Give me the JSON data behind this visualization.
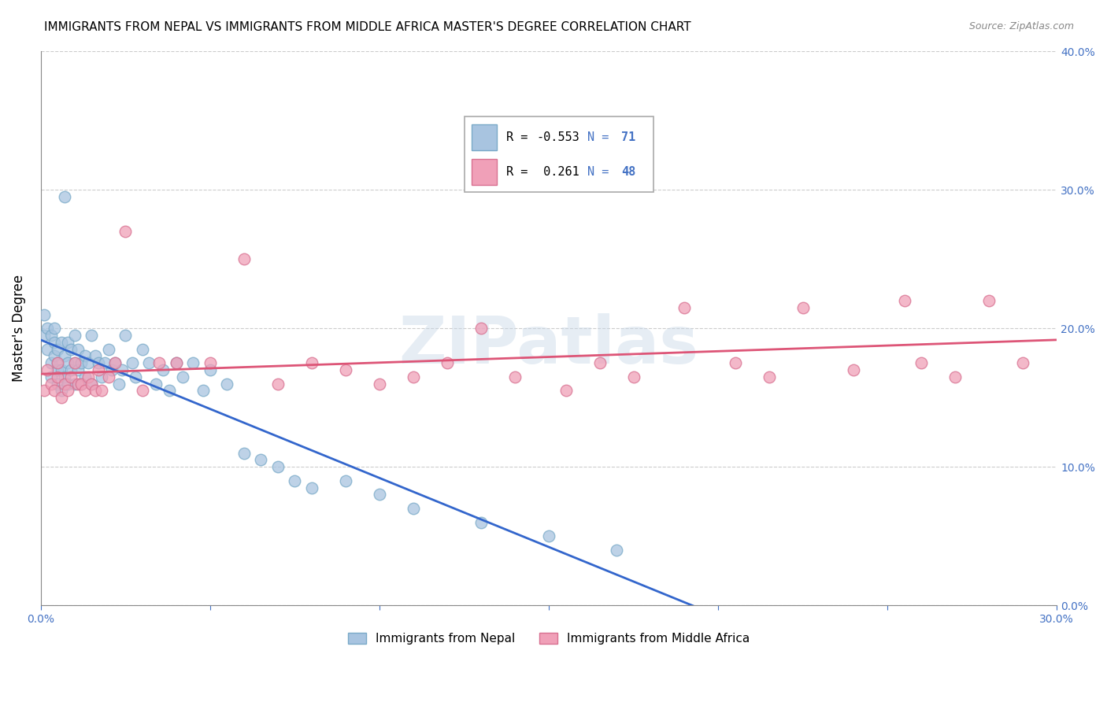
{
  "title": "IMMIGRANTS FROM NEPAL VS IMMIGRANTS FROM MIDDLE AFRICA MASTER'S DEGREE CORRELATION CHART",
  "source": "Source: ZipAtlas.com",
  "ylabel": "Master's Degree",
  "xlim": [
    0.0,
    0.3
  ],
  "ylim": [
    0.0,
    0.4
  ],
  "nepal_color": "#a8c4e0",
  "nepal_edge_color": "#7aaac8",
  "middle_africa_color": "#f0a0b8",
  "middle_africa_edge_color": "#d87090",
  "nepal_line_color": "#3366cc",
  "middle_africa_line_color": "#dd5577",
  "R_nepal": -0.553,
  "N_nepal": 71,
  "R_middle_africa": 0.261,
  "N_middle_africa": 48,
  "nepal_x": [
    0.001,
    0.001,
    0.002,
    0.002,
    0.003,
    0.003,
    0.003,
    0.004,
    0.004,
    0.004,
    0.005,
    0.005,
    0.005,
    0.005,
    0.006,
    0.006,
    0.006,
    0.007,
    0.007,
    0.007,
    0.008,
    0.008,
    0.008,
    0.009,
    0.009,
    0.01,
    0.01,
    0.01,
    0.011,
    0.011,
    0.012,
    0.012,
    0.013,
    0.013,
    0.014,
    0.015,
    0.015,
    0.016,
    0.017,
    0.018,
    0.019,
    0.02,
    0.021,
    0.022,
    0.023,
    0.024,
    0.025,
    0.027,
    0.028,
    0.03,
    0.032,
    0.034,
    0.036,
    0.038,
    0.04,
    0.042,
    0.045,
    0.048,
    0.05,
    0.055,
    0.06,
    0.065,
    0.07,
    0.075,
    0.08,
    0.09,
    0.1,
    0.11,
    0.13,
    0.15,
    0.17
  ],
  "nepal_y": [
    0.195,
    0.21,
    0.185,
    0.2,
    0.175,
    0.195,
    0.165,
    0.19,
    0.18,
    0.2,
    0.17,
    0.185,
    0.175,
    0.16,
    0.19,
    0.17,
    0.155,
    0.295,
    0.18,
    0.165,
    0.175,
    0.19,
    0.16,
    0.185,
    0.17,
    0.195,
    0.175,
    0.16,
    0.185,
    0.17,
    0.175,
    0.16,
    0.18,
    0.165,
    0.175,
    0.195,
    0.16,
    0.18,
    0.175,
    0.165,
    0.175,
    0.185,
    0.17,
    0.175,
    0.16,
    0.17,
    0.195,
    0.175,
    0.165,
    0.185,
    0.175,
    0.16,
    0.17,
    0.155,
    0.175,
    0.165,
    0.175,
    0.155,
    0.17,
    0.16,
    0.11,
    0.105,
    0.1,
    0.09,
    0.085,
    0.09,
    0.08,
    0.07,
    0.06,
    0.05,
    0.04
  ],
  "middle_africa_x": [
    0.001,
    0.002,
    0.003,
    0.004,
    0.005,
    0.005,
    0.006,
    0.007,
    0.008,
    0.009,
    0.01,
    0.011,
    0.012,
    0.013,
    0.014,
    0.015,
    0.016,
    0.017,
    0.018,
    0.02,
    0.022,
    0.025,
    0.03,
    0.035,
    0.04,
    0.05,
    0.06,
    0.07,
    0.08,
    0.09,
    0.1,
    0.11,
    0.12,
    0.13,
    0.14,
    0.155,
    0.165,
    0.175,
    0.19,
    0.205,
    0.215,
    0.225,
    0.24,
    0.255,
    0.26,
    0.27,
    0.28,
    0.29
  ],
  "middle_africa_y": [
    0.155,
    0.17,
    0.16,
    0.155,
    0.165,
    0.175,
    0.15,
    0.16,
    0.155,
    0.165,
    0.175,
    0.16,
    0.16,
    0.155,
    0.165,
    0.16,
    0.155,
    0.17,
    0.155,
    0.165,
    0.175,
    0.27,
    0.155,
    0.175,
    0.175,
    0.175,
    0.25,
    0.16,
    0.175,
    0.17,
    0.16,
    0.165,
    0.175,
    0.2,
    0.165,
    0.155,
    0.175,
    0.165,
    0.215,
    0.175,
    0.165,
    0.215,
    0.17,
    0.22,
    0.175,
    0.165,
    0.22,
    0.175
  ],
  "watermark": "ZIPatlas",
  "background_color": "#ffffff",
  "grid_color": "#cccccc",
  "title_fontsize": 11,
  "tick_fontsize": 10,
  "tick_color": "#4472c4"
}
